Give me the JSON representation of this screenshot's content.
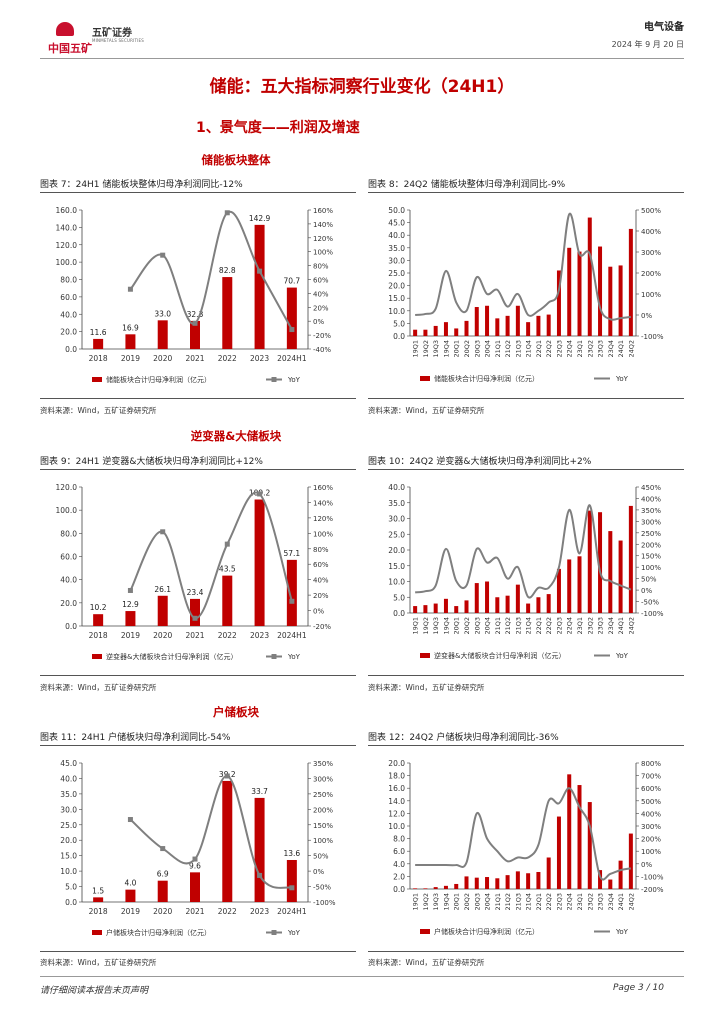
{
  "header": {
    "logo_text": "中国五矿",
    "logo_sub": "五矿证券",
    "logo_en": "MINMETALS SECURITIES",
    "industry": "电气设备",
    "date": "2024 年 9 月 20 日"
  },
  "page_title": "储能：五大指标洞察行业变化（24H1）",
  "section_title": "1、景气度——利润及增速",
  "groups": [
    {
      "title": "储能板块整体"
    },
    {
      "title": "逆变器&大储板块"
    },
    {
      "title": "户储板块"
    }
  ],
  "source_text": "资料来源：Wind，五矿证券研究所",
  "footer": {
    "left": "请仔细阅读本报告末页声明",
    "right": "Page   3 / 10"
  },
  "colors": {
    "bar": "#c00000",
    "line": "#7f7f7f",
    "title": "#c00000"
  },
  "chart_data": [
    {
      "type": "bar",
      "fig_title": "图表 7：24H1 储能板块整体归母净利润同比-12%",
      "categories": [
        "2018",
        "2019",
        "2020",
        "2021",
        "2022",
        "2023",
        "2024H1"
      ],
      "series": [
        {
          "name": "储能板块合计归母净利润（亿元）",
          "type": "bar",
          "axis": "left",
          "values": [
            11.6,
            16.9,
            33.0,
            32.3,
            82.8,
            142.9,
            70.7
          ]
        },
        {
          "name": "YoY",
          "type": "line",
          "axis": "right",
          "values": [
            null,
            46,
            95,
            -3,
            156,
            72,
            -12
          ]
        }
      ],
      "bar_labels": [
        "11.6",
        "16.9",
        "33.0",
        "32.3",
        "82.8",
        "142.9",
        "70.7"
      ],
      "y_left": {
        "min": 0,
        "max": 160,
        "step": 20,
        "decimals": 1,
        "suffix": ""
      },
      "y_right": {
        "min": -40,
        "max": 160,
        "step": 20,
        "decimals": 0,
        "suffix": "%"
      },
      "legend_position": "bottom",
      "grid": false
    },
    {
      "type": "bar",
      "fig_title": "图表 8：24Q2 储能板块整体归母净利润同比-9%",
      "categories": [
        "19Q1",
        "19Q2",
        "19Q3",
        "19Q4",
        "20Q1",
        "20Q2",
        "20Q3",
        "20Q4",
        "21Q1",
        "21Q2",
        "21Q3",
        "21Q4",
        "22Q1",
        "22Q2",
        "22Q3",
        "22Q4",
        "23Q1",
        "23Q2",
        "23Q3",
        "23Q4",
        "24Q1",
        "24Q2"
      ],
      "series": [
        {
          "name": "储能板块合计归母净利润（亿元）",
          "type": "bar",
          "axis": "left",
          "values": [
            2.5,
            2.5,
            4,
            5.5,
            3,
            6,
            11.5,
            12,
            7,
            8,
            12,
            5.5,
            8,
            8.5,
            26,
            35,
            33.5,
            47,
            35.5,
            27.5,
            28,
            42.5
          ]
        },
        {
          "name": "YoY",
          "type": "line",
          "axis": "right",
          "values": [
            0,
            5,
            30,
            210,
            60,
            20,
            180,
            100,
            120,
            40,
            100,
            0,
            20,
            60,
            120,
            480,
            290,
            290,
            35,
            -20,
            -15,
            -9
          ]
        }
      ],
      "bar_labels": [],
      "y_left": {
        "min": 0,
        "max": 50,
        "step": 5,
        "decimals": 1,
        "suffix": ""
      },
      "y_right": {
        "min": -100,
        "max": 500,
        "step": 100,
        "decimals": 0,
        "suffix": "%"
      },
      "legend_position": "bottom",
      "grid": false
    },
    {
      "type": "bar",
      "fig_title": "图表 9：24H1 逆变器&大储板块归母净利润同比+12%",
      "categories": [
        "2018",
        "2019",
        "2020",
        "2021",
        "2022",
        "2023",
        "2024H1"
      ],
      "series": [
        {
          "name": "逆变器&大储板块合计归母净利润（亿元）",
          "type": "bar",
          "axis": "left",
          "values": [
            10.2,
            12.9,
            26.1,
            23.4,
            43.5,
            109.2,
            57.1
          ]
        },
        {
          "name": "YoY",
          "type": "line",
          "axis": "right",
          "values": [
            null,
            26,
            102,
            -10,
            86,
            151,
            12
          ]
        }
      ],
      "bar_labels": [
        "10.2",
        "12.9",
        "26.1",
        "23.4",
        "43.5",
        "109.2",
        "57.1"
      ],
      "y_left": {
        "min": 0,
        "max": 120,
        "step": 20,
        "decimals": 1,
        "suffix": ""
      },
      "y_right": {
        "min": -20,
        "max": 160,
        "step": 20,
        "decimals": 0,
        "suffix": "%"
      },
      "legend_position": "bottom",
      "grid": false
    },
    {
      "type": "bar",
      "fig_title": "图表 10：24Q2 逆变器&大储板块归母净利润同比+2%",
      "categories": [
        "19Q1",
        "19Q2",
        "19Q3",
        "19Q4",
        "20Q1",
        "20Q2",
        "20Q3",
        "20Q4",
        "21Q1",
        "21Q2",
        "21Q3",
        "21Q4",
        "22Q1",
        "22Q2",
        "22Q3",
        "22Q4",
        "23Q1",
        "23Q2",
        "23Q3",
        "23Q4",
        "24Q1",
        "24Q2"
      ],
      "series": [
        {
          "name": "逆变器&大储板块合计归母净利润（亿元）",
          "type": "bar",
          "axis": "left",
          "values": [
            2.2,
            2.5,
            3,
            4.5,
            2.2,
            4,
            9.5,
            10,
            5,
            5.5,
            9,
            3,
            5,
            6,
            14,
            17,
            18,
            32.5,
            32,
            26,
            23,
            34
          ]
        },
        {
          "name": "YoY",
          "type": "line",
          "axis": "right",
          "values": [
            -10,
            -5,
            20,
            180,
            40,
            20,
            180,
            120,
            140,
            50,
            100,
            -30,
            10,
            10,
            100,
            350,
            160,
            370,
            80,
            40,
            20,
            2
          ]
        }
      ],
      "bar_labels": [],
      "y_left": {
        "min": 0,
        "max": 40,
        "step": 5,
        "decimals": 1,
        "suffix": ""
      },
      "y_right": {
        "min": -100,
        "max": 450,
        "step": 50,
        "decimals": 0,
        "suffix": "%"
      },
      "legend_position": "bottom",
      "grid": false
    },
    {
      "type": "bar",
      "fig_title": "图表 11：24H1 户储板块归母净利润同比-54%",
      "categories": [
        "2018",
        "2019",
        "2020",
        "2021",
        "2022",
        "2023",
        "2024H1"
      ],
      "series": [
        {
          "name": "户储板块合计归母净利润（亿元）",
          "type": "bar",
          "axis": "left",
          "values": [
            1.5,
            4.0,
            6.9,
            9.6,
            39.2,
            33.7,
            13.6
          ]
        },
        {
          "name": "YoY",
          "type": "line",
          "axis": "right",
          "values": [
            null,
            167,
            73,
            39,
            308,
            -14,
            -54
          ]
        }
      ],
      "bar_labels": [
        "1.5",
        "4.0",
        "6.9",
        "9.6",
        "39.2",
        "33.7",
        "13.6"
      ],
      "y_left": {
        "min": 0,
        "max": 45,
        "step": 5,
        "decimals": 1,
        "suffix": ""
      },
      "y_right": {
        "min": -100,
        "max": 350,
        "step": 50,
        "decimals": 0,
        "suffix": "%"
      },
      "legend_position": "bottom",
      "grid": false
    },
    {
      "type": "bar",
      "fig_title": "图表 12：24Q2 户储板块归母净利润同比-36%",
      "categories": [
        "19Q1",
        "19Q2",
        "19Q3",
        "19Q4",
        "20Q1",
        "20Q2",
        "20Q3",
        "20Q4",
        "21Q1",
        "21Q2",
        "21Q3",
        "21Q4",
        "22Q1",
        "22Q2",
        "22Q3",
        "22Q4",
        "23Q1",
        "23Q2",
        "23Q3",
        "23Q4",
        "24Q1",
        "24Q2"
      ],
      "series": [
        {
          "name": "户储板块合计归母净利润（亿元）",
          "type": "bar",
          "axis": "left",
          "values": [
            0.1,
            0.1,
            0.3,
            0.5,
            0.8,
            2.0,
            1.8,
            1.9,
            1.7,
            2.2,
            2.8,
            2.5,
            2.7,
            5.0,
            11.5,
            18.2,
            16.5,
            13.8,
            3.0,
            1.5,
            4.5,
            8.8
          ]
        },
        {
          "name": "YoY",
          "type": "line",
          "axis": "right",
          "values": [
            -10,
            -10,
            -10,
            -10,
            -10,
            10,
            400,
            200,
            100,
            20,
            50,
            50,
            150,
            500,
            480,
            600,
            450,
            300,
            -100,
            -80,
            -50,
            -36
          ]
        }
      ],
      "bar_labels": [],
      "y_left": {
        "min": 0,
        "max": 20,
        "step": 2,
        "decimals": 1,
        "suffix": ""
      },
      "y_right": {
        "min": -200,
        "max": 800,
        "step": 100,
        "decimals": 0,
        "suffix": "%"
      },
      "legend_position": "bottom",
      "grid": false
    }
  ]
}
